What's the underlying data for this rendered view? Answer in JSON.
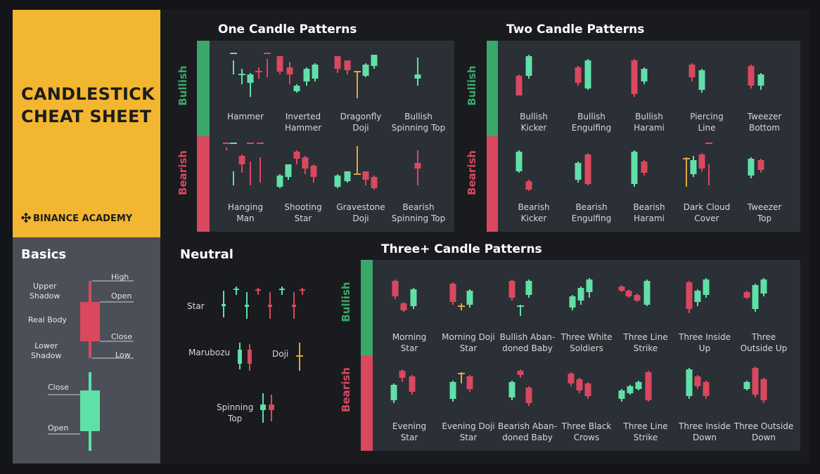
{
  "header": {
    "title_line1": "CANDLESTICK",
    "title_line2": "CHEAT SHEET",
    "brand": "BINANCE ACADEMY"
  },
  "colors": {
    "bullish": "#3aa86b",
    "bearish": "#d9485f",
    "brand_yellow": "#f2b630",
    "neutral_line": "#e0a640"
  },
  "basics": {
    "title": "Basics",
    "labels": {
      "high": "High",
      "upper_shadow": "Upper\nShadow",
      "open": "Open",
      "real_body": "Real Body",
      "close": "Close",
      "lower_shadow": "Lower\nShadow",
      "low": "Low",
      "close2": "Close",
      "open2": "Open"
    }
  },
  "one_candle": {
    "title": "One Candle Patterns",
    "bullish_label": "Bullish",
    "bearish_label": "Bearish",
    "bullish": [
      {
        "name": "Hammer"
      },
      {
        "name": "Inverted\nHammer"
      },
      {
        "name": "Dragonfly\nDoji"
      },
      {
        "name": "Bullish\nSpinning Top"
      }
    ],
    "bearish": [
      {
        "name": "Hanging\nMan"
      },
      {
        "name": "Shooting\nStar"
      },
      {
        "name": "Gravestone\nDoji"
      },
      {
        "name": "Bearish\nSpinning Top"
      }
    ]
  },
  "two_candle": {
    "title": "Two Candle Patterns",
    "bullish_label": "Bullish",
    "bearish_label": "Bearish",
    "bullish": [
      {
        "name": "Bullish\nKicker"
      },
      {
        "name": "Bullish\nEngulfing"
      },
      {
        "name": "Bullish\nHarami"
      },
      {
        "name": "Piercing\nLine"
      },
      {
        "name": "Tweezer\nBottom"
      }
    ],
    "bearish": [
      {
        "name": "Bearish\nKicker"
      },
      {
        "name": "Bearish\nEngulfing"
      },
      {
        "name": "Bearish\nHarami"
      },
      {
        "name": "Dark Cloud\nCover"
      },
      {
        "name": "Tweezer\nTop"
      }
    ]
  },
  "neutral": {
    "title": "Neutral",
    "items": {
      "star": "Star",
      "marubozu": "Marubozu",
      "doji": "Doji",
      "spinning_top": "Spinning\nTop"
    }
  },
  "three_candle": {
    "title": "Three+ Candle Patterns",
    "bullish_label": "Bullish",
    "bearish_label": "Bearish",
    "bullish": [
      {
        "name": "Morning\nStar"
      },
      {
        "name": "Morning Doji\nStar"
      },
      {
        "name": "Bullish Aban-\ndoned Baby"
      },
      {
        "name": "Three White\nSoldiers"
      },
      {
        "name": "Three Line\nStrike"
      },
      {
        "name": "Three Inside\nUp"
      },
      {
        "name": "Three\nOutside Up"
      }
    ],
    "bearish": [
      {
        "name": "Evening\nStar"
      },
      {
        "name": "Evening Doji\nStar"
      },
      {
        "name": "Bearish Aban-\ndoned Baby"
      },
      {
        "name": "Three Black\nCrows"
      },
      {
        "name": "Three Line\nStrike"
      },
      {
        "name": "Three Inside\nDown"
      },
      {
        "name": "Three Outside\nDown"
      }
    ]
  }
}
